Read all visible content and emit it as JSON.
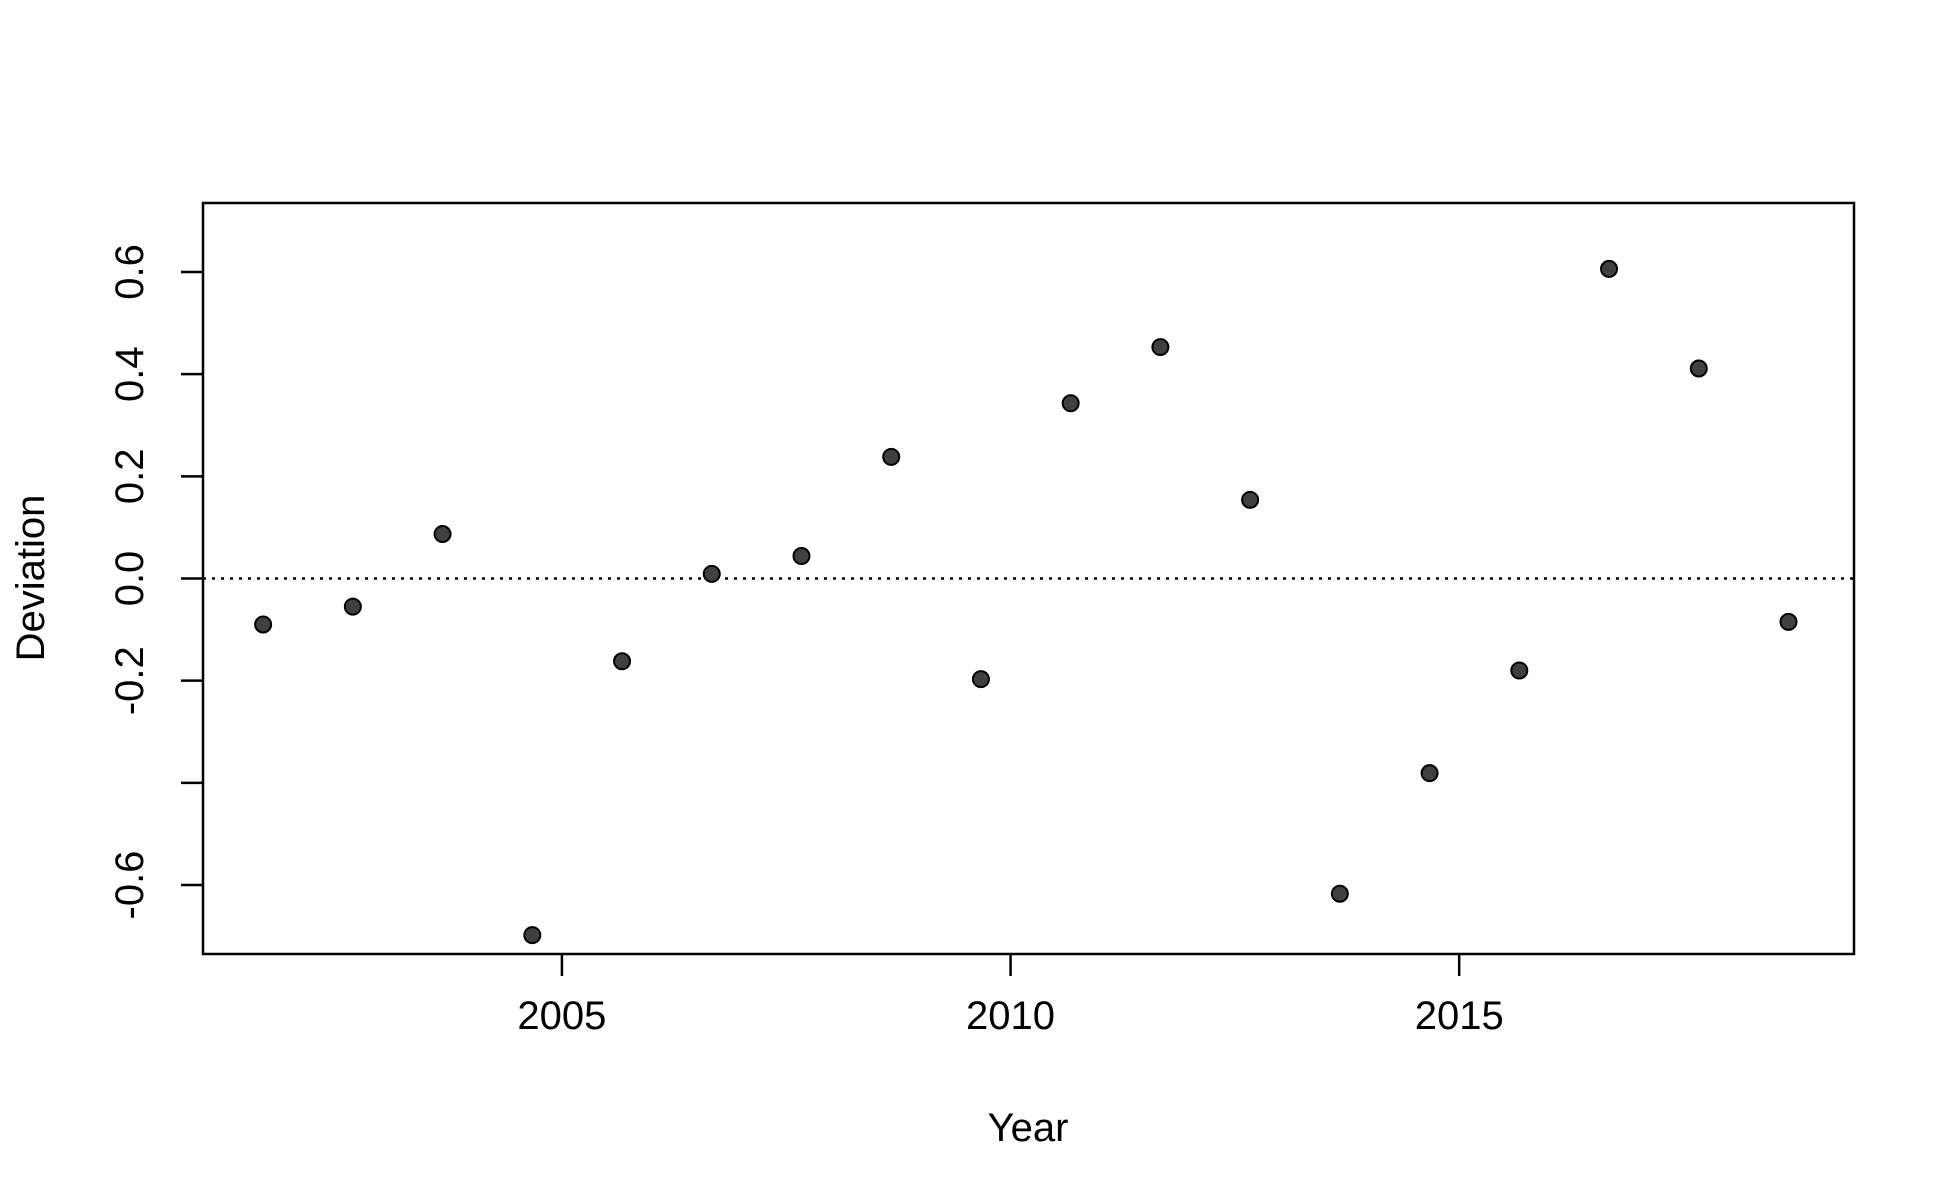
{
  "chart_data": {
    "type": "scatter",
    "title": "",
    "xlabel": "Year",
    "ylabel": "Deviation",
    "xlim": [
      2001.0,
      2019.4
    ],
    "ylim": [
      -0.735,
      0.735
    ],
    "x_ticks": [
      2005,
      2010,
      2015
    ],
    "x_tick_labels": [
      "2005",
      "2010",
      "2015"
    ],
    "y_ticks": [
      -0.6,
      -0.4,
      -0.2,
      0.0,
      0.2,
      0.4,
      0.6
    ],
    "y_tick_labels": [
      "-0.6",
      "",
      "-0.2",
      "0.0",
      "0.2",
      "0.4",
      "0.6"
    ],
    "reference_line": {
      "y": 0.0,
      "style": "dotted"
    },
    "grid": false,
    "series": [
      {
        "point_color": "#404040",
        "x": [
          2001.67,
          2002.67,
          2003.67,
          2004.67,
          2005.67,
          2006.67,
          2007.67,
          2008.67,
          2009.67,
          2010.67,
          2011.67,
          2012.67,
          2013.67,
          2014.67,
          2015.67,
          2016.67,
          2017.67,
          2018.67
        ],
        "y": [
          -0.09,
          -0.055,
          0.087,
          -0.698,
          -0.162,
          0.009,
          0.044,
          0.238,
          -0.197,
          0.343,
          0.453,
          0.154,
          -0.617,
          -0.381,
          -0.18,
          0.606,
          0.411,
          -0.085
        ]
      }
    ]
  }
}
